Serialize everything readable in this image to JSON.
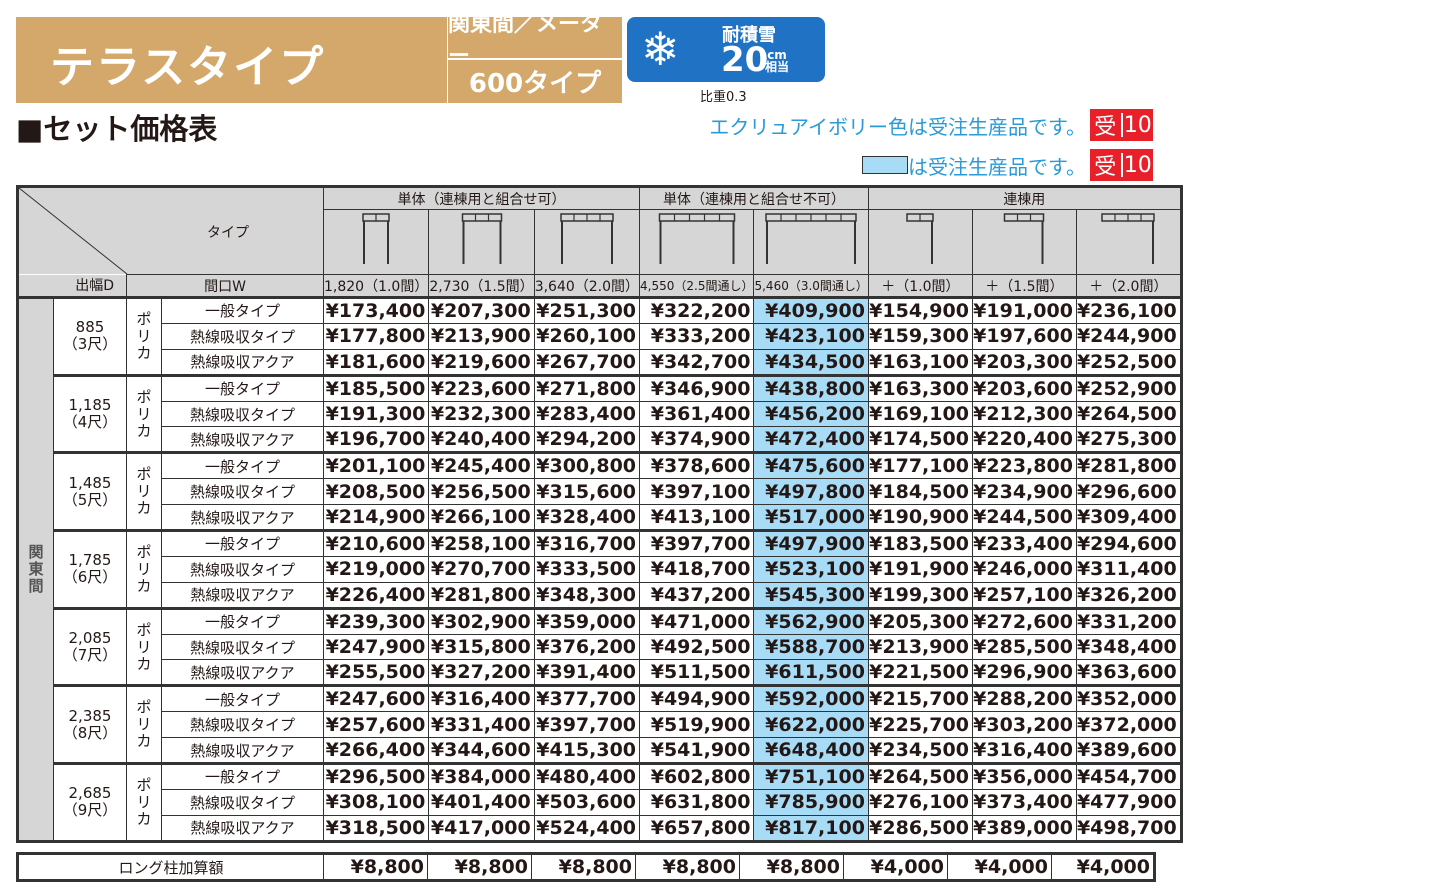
{
  "header": {
    "title": "テラスタイプ",
    "region": "関東間／メーター",
    "type": "600タイプ",
    "snow_label": "耐積雪",
    "snow_value": "20",
    "snow_unit_top": "cm",
    "snow_unit_bottom": "相当",
    "snow_icon": "snowflake-icon",
    "gravity": "比重0.3",
    "section_title": "■セット価格表"
  },
  "notes": [
    {
      "text": "エクリュアイボリー色は受注生産品です。",
      "badge_left": "受",
      "badge_right": "10"
    },
    {
      "text": "は受注生産品です。",
      "badge_left": "受",
      "badge_right": "10",
      "swatch_color": "#a8dcf6"
    }
  ],
  "colors": {
    "header_tan": "#d4a86a",
    "snow_blue": "#1f72c4",
    "highlight": "#a8dcf6",
    "badge_red": "#e8202a",
    "note_blue": "#2a9bd8"
  },
  "table": {
    "corner_type": "タイプ",
    "corner_depth": "出幅D",
    "corner_width": "間口W",
    "groups": [
      {
        "label": "単体（連棟用と組合せ可）",
        "span": 3
      },
      {
        "label": "単体（連棟用と組合せ不可）",
        "span": 2
      },
      {
        "label": "連棟用",
        "span": 3
      }
    ],
    "columns": [
      {
        "width": "1,820（1.0間）",
        "panels": 2,
        "kind": "single"
      },
      {
        "width": "2,730（1.5間）",
        "panels": 3,
        "kind": "single"
      },
      {
        "width": "3,640（2.0間）",
        "panels": 4,
        "kind": "single"
      },
      {
        "width": "4,550（2.5間通し）",
        "panels": 5,
        "kind": "single"
      },
      {
        "width": "5,460（3.0間通し）",
        "panels": 6,
        "kind": "single",
        "highlight": true
      },
      {
        "width": "＋（1.0間）",
        "panels": 2,
        "kind": "connect"
      },
      {
        "width": "＋（1.5間）",
        "panels": 3,
        "kind": "connect"
      },
      {
        "width": "＋（2.0間）",
        "panels": 4,
        "kind": "connect"
      }
    ],
    "region_label": "関東間",
    "material": "ポリカ",
    "row_types": [
      "一般タイプ",
      "熱線吸収タイプ",
      "熱線吸収アクア"
    ],
    "sections": [
      {
        "depth": "885",
        "shaku": "（3尺）",
        "rows": [
          [
            "¥173,400",
            "¥207,300",
            "¥251,300",
            "¥322,200",
            "¥409,900",
            "¥154,900",
            "¥191,000",
            "¥236,100"
          ],
          [
            "¥177,800",
            "¥213,900",
            "¥260,100",
            "¥333,200",
            "¥423,100",
            "¥159,300",
            "¥197,600",
            "¥244,900"
          ],
          [
            "¥181,600",
            "¥219,600",
            "¥267,700",
            "¥342,700",
            "¥434,500",
            "¥163,100",
            "¥203,300",
            "¥252,500"
          ]
        ]
      },
      {
        "depth": "1,185",
        "shaku": "（4尺）",
        "rows": [
          [
            "¥185,500",
            "¥223,600",
            "¥271,800",
            "¥346,900",
            "¥438,800",
            "¥163,300",
            "¥203,600",
            "¥252,900"
          ],
          [
            "¥191,300",
            "¥232,300",
            "¥283,400",
            "¥361,400",
            "¥456,200",
            "¥169,100",
            "¥212,300",
            "¥264,500"
          ],
          [
            "¥196,700",
            "¥240,400",
            "¥294,200",
            "¥374,900",
            "¥472,400",
            "¥174,500",
            "¥220,400",
            "¥275,300"
          ]
        ]
      },
      {
        "depth": "1,485",
        "shaku": "（5尺）",
        "rows": [
          [
            "¥201,100",
            "¥245,400",
            "¥300,800",
            "¥378,600",
            "¥475,600",
            "¥177,100",
            "¥223,800",
            "¥281,800"
          ],
          [
            "¥208,500",
            "¥256,500",
            "¥315,600",
            "¥397,100",
            "¥497,800",
            "¥184,500",
            "¥234,900",
            "¥296,600"
          ],
          [
            "¥214,900",
            "¥266,100",
            "¥328,400",
            "¥413,100",
            "¥517,000",
            "¥190,900",
            "¥244,500",
            "¥309,400"
          ]
        ]
      },
      {
        "depth": "1,785",
        "shaku": "（6尺）",
        "rows": [
          [
            "¥210,600",
            "¥258,100",
            "¥316,700",
            "¥397,700",
            "¥497,900",
            "¥183,500",
            "¥233,400",
            "¥294,600"
          ],
          [
            "¥219,000",
            "¥270,700",
            "¥333,500",
            "¥418,700",
            "¥523,100",
            "¥191,900",
            "¥246,000",
            "¥311,400"
          ],
          [
            "¥226,400",
            "¥281,800",
            "¥348,300",
            "¥437,200",
            "¥545,300",
            "¥199,300",
            "¥257,100",
            "¥326,200"
          ]
        ]
      },
      {
        "depth": "2,085",
        "shaku": "（7尺）",
        "rows": [
          [
            "¥239,300",
            "¥302,900",
            "¥359,000",
            "¥471,000",
            "¥562,900",
            "¥205,300",
            "¥272,600",
            "¥331,200"
          ],
          [
            "¥247,900",
            "¥315,800",
            "¥376,200",
            "¥492,500",
            "¥588,700",
            "¥213,900",
            "¥285,500",
            "¥348,400"
          ],
          [
            "¥255,500",
            "¥327,200",
            "¥391,400",
            "¥511,500",
            "¥611,500",
            "¥221,500",
            "¥296,900",
            "¥363,600"
          ]
        ]
      },
      {
        "depth": "2,385",
        "shaku": "（8尺）",
        "rows": [
          [
            "¥247,600",
            "¥316,400",
            "¥377,700",
            "¥494,900",
            "¥592,000",
            "¥215,700",
            "¥288,200",
            "¥352,000"
          ],
          [
            "¥257,600",
            "¥331,400",
            "¥397,700",
            "¥519,900",
            "¥622,000",
            "¥225,700",
            "¥303,200",
            "¥372,000"
          ],
          [
            "¥266,400",
            "¥344,600",
            "¥415,300",
            "¥541,900",
            "¥648,400",
            "¥234,500",
            "¥316,400",
            "¥389,600"
          ]
        ]
      },
      {
        "depth": "2,685",
        "shaku": "（9尺）",
        "rows": [
          [
            "¥296,500",
            "¥384,000",
            "¥480,400",
            "¥602,800",
            "¥751,100",
            "¥264,500",
            "¥356,000",
            "¥454,700"
          ],
          [
            "¥308,100",
            "¥401,400",
            "¥503,600",
            "¥631,800",
            "¥785,900",
            "¥276,100",
            "¥373,400",
            "¥477,900"
          ],
          [
            "¥318,500",
            "¥417,000",
            "¥524,400",
            "¥657,800",
            "¥817,100",
            "¥286,500",
            "¥389,000",
            "¥498,700"
          ]
        ]
      }
    ],
    "long_post": {
      "label": "ロング柱加算額",
      "values": [
        "¥8,800",
        "¥8,800",
        "¥8,800",
        "¥8,800",
        "¥8,800",
        "¥4,000",
        "¥4,000",
        "¥4,000"
      ]
    }
  }
}
